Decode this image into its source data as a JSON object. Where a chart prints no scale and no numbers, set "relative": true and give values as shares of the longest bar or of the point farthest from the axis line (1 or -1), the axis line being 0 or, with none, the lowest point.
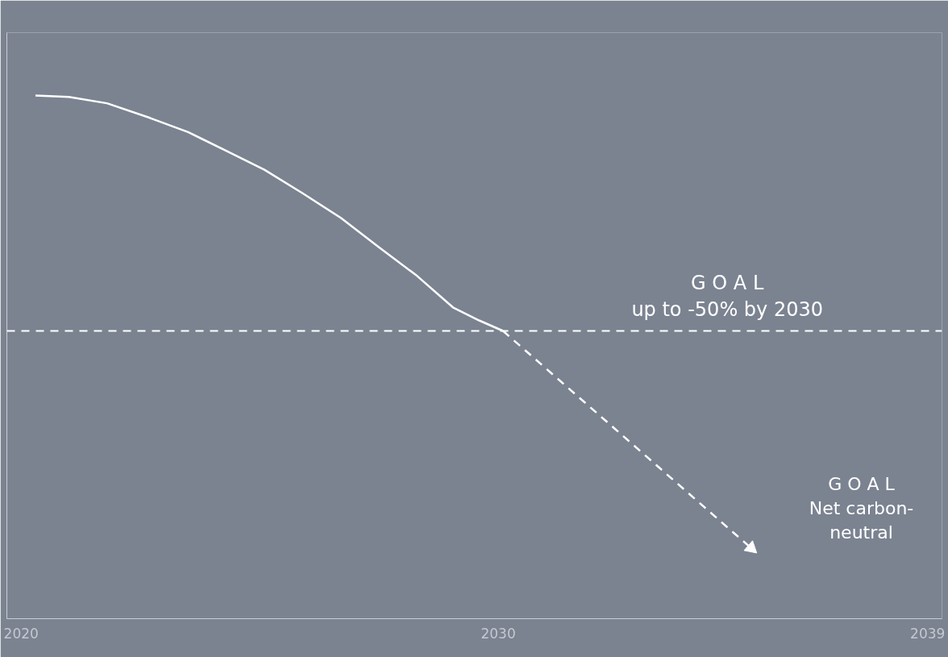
{
  "chart_data": {
    "type": "line",
    "relative": true,
    "xlim": [
      2019.7,
      2039.3
    ],
    "xticks": [
      2020,
      2030,
      2039
    ],
    "series": [
      {
        "color": "#ffffff",
        "line_style": "solid",
        "x": [
          2020.3,
          2021.0,
          2021.8,
          2022.7,
          2023.5,
          2024.3,
          2025.1,
          2025.9,
          2026.7,
          2027.5,
          2028.3,
          2029.05,
          2029.6,
          2030.1
        ],
        "values": [
          1.0,
          0.997,
          0.985,
          0.957,
          0.93,
          0.894,
          0.858,
          0.813,
          0.766,
          0.71,
          0.655,
          0.595,
          0.57,
          0.55
        ]
      },
      {
        "color": "#ffffff",
        "line_style": "dashed",
        "x": [
          2030.1,
          2035.3
        ],
        "values": [
          0.55,
          0.135
        ]
      }
    ],
    "ref_lines": [
      {
        "axis": "y",
        "value": 0.55,
        "color": "#ffffff",
        "line_style": "dashed"
      }
    ],
    "annotations": [
      {
        "text": "G O A L\nup to -50% by 2030",
        "x": 2034.8,
        "y": 0.55
      },
      "G O A L\nNet carbon-\nneutral"
    ]
  }
}
